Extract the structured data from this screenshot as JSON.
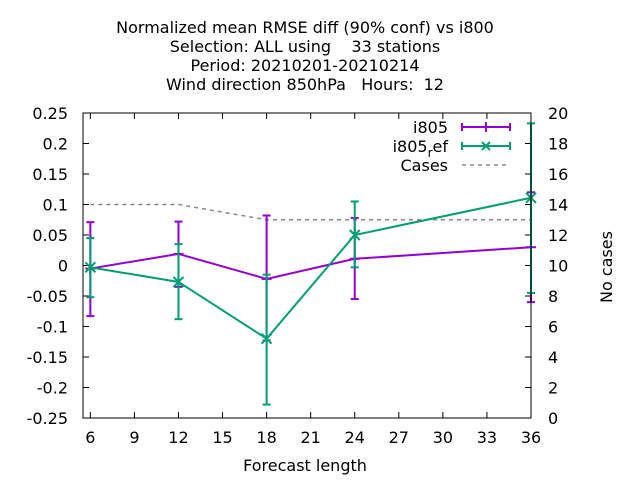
{
  "chart_data": {
    "type": "line",
    "title_lines": [
      "Normalized mean RMSE diff (90% conf) vs i800",
      "Selection: ALL using    33 stations",
      "Period: 20210201-20210214",
      "Wind direction 850hPa   Hours:  12"
    ],
    "xlabel": "Forecast length",
    "ylabel_right": "No cases",
    "xlim": [
      5.5,
      36
    ],
    "ylim": [
      -0.25,
      0.25
    ],
    "y2lim": [
      0,
      20
    ],
    "x_ticks": [
      6,
      9,
      12,
      15,
      18,
      21,
      24,
      27,
      30,
      33,
      36
    ],
    "y_ticks": [
      -0.25,
      -0.2,
      -0.15,
      -0.1,
      -0.05,
      0,
      0.05,
      0.1,
      0.15,
      0.2,
      0.25
    ],
    "y_tick_labels": [
      "-0.25",
      "-0.2",
      "-0.15",
      "-0.1",
      "-0.05",
      "0",
      "0.05",
      "0.1",
      "0.15",
      "0.2",
      "0.25"
    ],
    "y2_ticks": [
      0,
      2,
      4,
      6,
      8,
      10,
      12,
      14,
      16,
      18,
      20
    ],
    "legend_position": "top-right",
    "series": [
      {
        "name": "i805",
        "color": "#9400d3",
        "marker": "plus",
        "x": [
          6,
          12,
          18,
          24,
          36
        ],
        "y": [
          -0.005,
          0.019,
          -0.022,
          0.011,
          0.03
        ],
        "err_low": [
          -0.083,
          -0.035,
          -0.123,
          -0.055,
          -0.06
        ],
        "err_high": [
          0.071,
          0.072,
          0.082,
          0.078,
          0.12
        ]
      },
      {
        "name": "i805_ref",
        "legend_main": "i805",
        "legend_sub": "r",
        "legend_tail": "ef",
        "color": "#009e73",
        "marker": "cross",
        "x": [
          6,
          12,
          18,
          24,
          36
        ],
        "y": [
          -0.003,
          -0.027,
          -0.12,
          0.05,
          0.111
        ],
        "err_low": [
          -0.052,
          -0.088,
          -0.228,
          -0.003,
          -0.045
        ],
        "err_high": [
          0.045,
          0.035,
          -0.015,
          0.105,
          0.233
        ]
      }
    ],
    "cases": {
      "name": "Cases",
      "color": "#888888",
      "x": [
        6,
        12,
        18,
        24,
        36
      ],
      "y": [
        14,
        14,
        13,
        13,
        13
      ]
    }
  }
}
